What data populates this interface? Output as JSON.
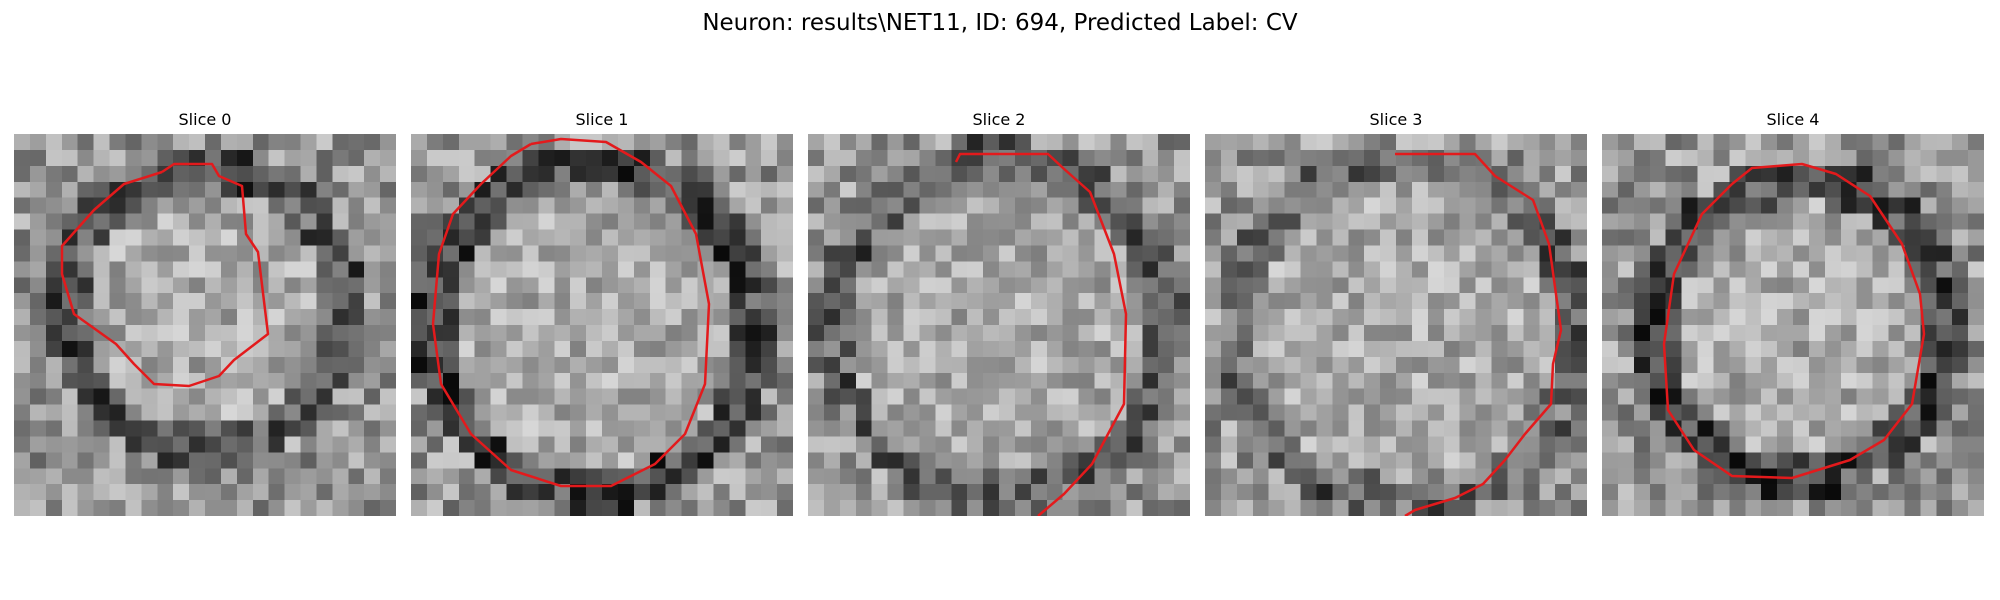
{
  "figure": {
    "title": "Neuron: results\\NET11, ID: 694, Predicted Label: CV"
  },
  "slices": [
    {
      "title": "Slice 0",
      "contour_color": "#e31a1c"
    },
    {
      "title": "Slice 1",
      "contour_color": "#e31a1c"
    },
    {
      "title": "Slice 2",
      "contour_color": "#e31a1c"
    },
    {
      "title": "Slice 3",
      "contour_color": "#e31a1c"
    },
    {
      "title": "Slice 4",
      "contour_color": "#e31a1c"
    }
  ],
  "colormap": "gray"
}
